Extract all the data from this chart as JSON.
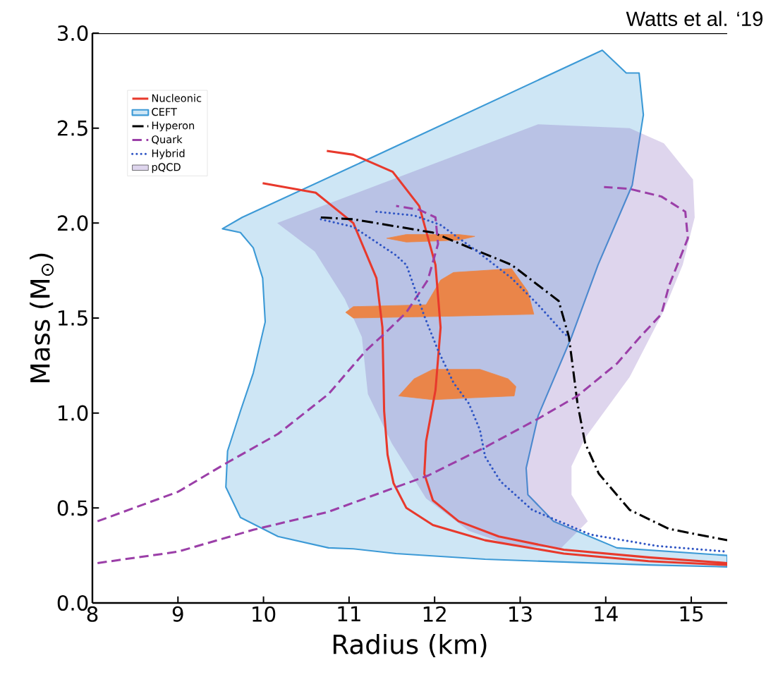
{
  "chart_data": {
    "type": "line",
    "xlabel": "Radius (km)",
    "ylabel": "Mass (M$_{⊙}$)",
    "annotations": [
      "Watts et al. ‘19"
    ],
    "xlim": [
      8,
      15.42
    ],
    "ylim": [
      0,
      3
    ],
    "xticks": [
      8,
      9,
      10,
      11,
      12,
      13,
      14,
      15
    ],
    "yticks": [
      {
        "value": 0,
        "label": "0.0"
      },
      {
        "value": 0.5,
        "label": "0.5"
      },
      {
        "value": 1,
        "label": "1.0"
      },
      {
        "value": 1.5,
        "label": "1.5"
      },
      {
        "value": 2,
        "label": "2.0"
      },
      {
        "value": 2.5,
        "label": "2.5"
      },
      {
        "value": 3,
        "label": "3.0"
      }
    ],
    "legend": "top left",
    "marker": "none",
    "series": [
      {
        "name": "Nucleonic",
        "color": "#e8392c",
        "line_style": "solid",
        "x": [
          9.99,
          10.61,
          11.05,
          11.32,
          11.39,
          11.41,
          11.45,
          11.52,
          11.67,
          11.98,
          12.59,
          13.51,
          14.5,
          15.42,
          null,
          10.74,
          11.05,
          11.51,
          11.82,
          12.01,
          12.07,
          12.01,
          11.9,
          11.88,
          11.98,
          12.28,
          12.75,
          13.51,
          14.5,
          15.42
        ],
        "values": [
          2.21,
          2.16,
          2.0,
          1.71,
          1.45,
          1.01,
          0.78,
          0.63,
          0.5,
          0.41,
          0.33,
          0.26,
          0.22,
          0.2,
          null,
          2.38,
          2.36,
          2.27,
          2.09,
          1.78,
          1.45,
          1.12,
          0.85,
          0.68,
          0.54,
          0.43,
          0.35,
          0.28,
          0.24,
          0.21
        ]
      },
      {
        "type": "area",
        "name": "CEFT",
        "color": "#3d9ad6",
        "line_style": "solid",
        "x": [
          9.52,
          9.75,
          11.05,
          13.96,
          14.24,
          14.39,
          14.44,
          14.31,
          13.91,
          13.6,
          13.21,
          13.07,
          13.09,
          13.39,
          14.13,
          15.42,
          15.42,
          14.5,
          12.59,
          11.55,
          11.05,
          10.76,
          10.17,
          9.73,
          9.56,
          9.58,
          9.73,
          9.88,
          10.02,
          9.99,
          9.88,
          9.73
        ],
        "values": [
          1.97,
          2.03,
          2.3,
          2.91,
          2.79,
          2.79,
          2.57,
          2.2,
          1.78,
          1.4,
          0.985,
          0.71,
          0.57,
          0.43,
          0.29,
          0.25,
          0.19,
          0.2,
          0.23,
          0.26,
          0.285,
          0.29,
          0.35,
          0.45,
          0.61,
          0.8,
          1.01,
          1.21,
          1.48,
          1.71,
          1.87,
          1.95
        ]
      },
      {
        "name": "Hyperon",
        "color": "#000000",
        "line_style": "dashdot",
        "x": [
          10.67,
          11.05,
          11.98,
          12.9,
          13.45,
          13.57,
          13.67,
          13.76,
          13.92,
          14.28,
          14.74,
          15.42
        ],
        "values": [
          2.03,
          2.02,
          1.95,
          1.78,
          1.59,
          1.4,
          1.05,
          0.84,
          0.68,
          0.49,
          0.39,
          0.33
        ]
      },
      {
        "name": "Quark",
        "color": "#9b3fa8",
        "line_style": "dashed",
        "x": [
          8.06,
          9.0,
          9.58,
          10.17,
          10.76,
          11.2,
          11.42,
          11.67,
          11.92,
          12.04,
          12.01,
          11.82,
          11.55,
          null,
          8.06,
          9.0,
          9.88,
          10.76,
          11.55,
          11.92,
          12.59,
          13.21,
          13.67,
          14.13,
          14.4,
          14.65,
          14.74,
          14.96,
          14.93,
          14.65,
          14.28,
          13.98
        ],
        "values": [
          0.43,
          0.585,
          0.74,
          0.89,
          1.1,
          1.33,
          1.42,
          1.53,
          1.7,
          1.89,
          2.03,
          2.07,
          2.09,
          null,
          0.21,
          0.27,
          0.385,
          0.48,
          0.61,
          0.67,
          0.82,
          0.97,
          1.09,
          1.26,
          1.4,
          1.52,
          1.67,
          1.92,
          2.06,
          2.14,
          2.18,
          2.19
        ]
      },
      {
        "name": "Hybrid",
        "color": "#2f55c4",
        "line_style": "dotted",
        "x": [
          10.67,
          11.05,
          11.55,
          11.67,
          11.88,
          12.04,
          12.22,
          12.4,
          12.53,
          12.59,
          12.77,
          13.14,
          13.82,
          14.6,
          15.42,
          null,
          11.32,
          11.76,
          12.07,
          12.5,
          12.9,
          13.21,
          13.51,
          13.57
        ],
        "values": [
          2.02,
          1.98,
          1.83,
          1.78,
          1.51,
          1.33,
          1.16,
          1.05,
          0.91,
          0.77,
          0.64,
          0.49,
          0.36,
          0.3,
          0.27,
          null,
          2.06,
          2.04,
          1.99,
          1.85,
          1.71,
          1.57,
          1.42,
          1.4
        ]
      },
      {
        "type": "area",
        "name": "pQCD",
        "color": "#7a58b8",
        "line_style": "none",
        "x": [
          10.16,
          10.6,
          10.95,
          11.15,
          11.22,
          11.5,
          11.9,
          12.4,
          12.9,
          13.48,
          13.79,
          13.6,
          13.6,
          13.76,
          14.28,
          14.68,
          14.9,
          15.04,
          15.02,
          14.68,
          14.28,
          13.21
        ],
        "values": [
          2.0,
          1.85,
          1.6,
          1.4,
          1.1,
          0.84,
          0.55,
          0.38,
          0.3,
          0.29,
          0.43,
          0.57,
          0.72,
          0.87,
          1.19,
          1.54,
          1.78,
          2.03,
          2.23,
          2.42,
          2.5,
          2.52
        ]
      },
      {
        "type": "area",
        "color": "#ea8549",
        "line_style": "solid",
        "x": [
          11.44,
          11.67,
          12.28,
          12.47,
          12.28,
          11.67
        ],
        "values": [
          1.92,
          1.94,
          1.94,
          1.93,
          1.91,
          1.9
        ]
      },
      {
        "type": "area",
        "color": "#ea8549",
        "line_style": "solid",
        "x": [
          10.96,
          11.05,
          11.9,
          12.07,
          12.22,
          12.9,
          13.09,
          13.16,
          12.22,
          11.05
        ],
        "values": [
          1.53,
          1.56,
          1.57,
          1.7,
          1.74,
          1.76,
          1.64,
          1.52,
          1.51,
          1.5
        ]
      },
      {
        "type": "area",
        "color": "#ea8549",
        "line_style": "solid",
        "x": [
          11.58,
          11.76,
          11.98,
          12.53,
          12.86,
          12.95,
          12.93,
          12.44,
          11.98
        ],
        "values": [
          1.09,
          1.18,
          1.23,
          1.23,
          1.18,
          1.14,
          1.09,
          1.08,
          1.07
        ]
      }
    ]
  }
}
